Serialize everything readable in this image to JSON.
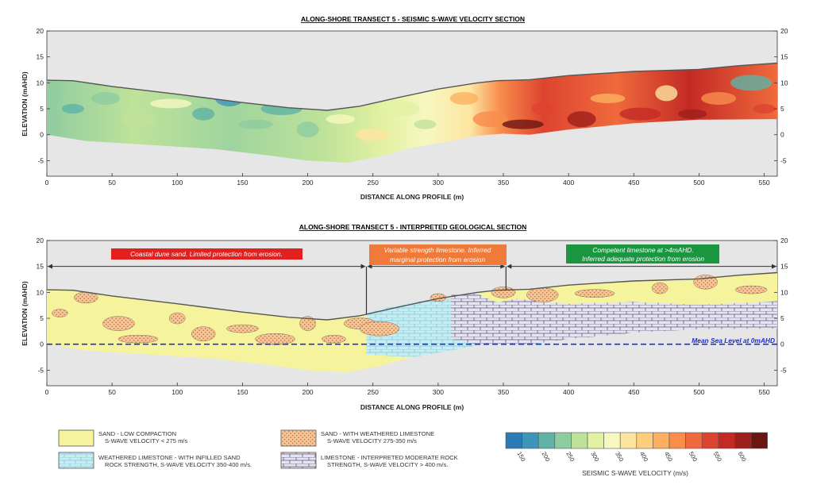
{
  "top": {
    "title": "ALONG-SHORE TRANSECT 5 - SEISMIC S-WAVE VELOCITY SECTION",
    "y_label": "ELEVATION (mAHD)",
    "x_label": "DISTANCE ALONG PROFILE (m)",
    "x_ticks": [
      "0",
      "50",
      "100",
      "150",
      "200",
      "250",
      "300",
      "350",
      "400",
      "450",
      "500",
      "550"
    ],
    "y_ticks": [
      "20",
      "15",
      "10",
      "5",
      "0",
      "-5"
    ]
  },
  "bottom": {
    "title": "ALONG-SHORE TRANSECT 5 - INTERPRETED GEOLOGICAL SECTION",
    "y_label": "ELEVATION (mAHD)",
    "x_label": "DISTANCE ALONG PROFILE (m)",
    "x_ticks": [
      "0",
      "50",
      "100",
      "150",
      "200",
      "250",
      "300",
      "350",
      "400",
      "450",
      "500",
      "550"
    ],
    "y_ticks": [
      "20",
      "15",
      "10",
      "5",
      "0",
      "-5"
    ],
    "zones": [
      {
        "text": "Coastal dune sand. Limited protection from erosion.",
        "color": "#e4201f"
      },
      {
        "text": "Variable strength limestone. Inferred",
        "text2": "marginal protection from erosion",
        "color": "#f07a3a"
      },
      {
        "text": "Competent limestone at >4mAHD.",
        "text2": "Inferred adequate protection from erosion",
        "color": "#1a9640"
      }
    ],
    "msl_label": "Mean Sea Level at 0mAHD"
  },
  "legend": {
    "items": [
      {
        "line1": "SAND - LOW COMPACTION",
        "line2": "S-WAVE VELOCITY < 275 m/s",
        "pattern": "sand"
      },
      {
        "line1": "WEATHERED LIMESTONE - WITH INFILLED SAND",
        "line2": "ROCK STRENGTH, S-WAVE VELOCITY 350-400  m/s.",
        "pattern": "weathered"
      },
      {
        "line1": "SAND - WITH WEATHERED LIMESTONE",
        "line2": "S-WAVE VELOCITY 275-350 m/s",
        "pattern": "sandlime"
      },
      {
        "line1": "LIMESTONE - INTERPRETED MODERATE ROCK",
        "line2": "STRENGTH, S-WAVE VELOCITY > 400 m/s.",
        "pattern": "limestone"
      }
    ]
  },
  "colorbar": {
    "title": "SEISMIC S-WAVE VELOCITY (m/s)",
    "ticks": [
      "150",
      "200",
      "250",
      "300",
      "350",
      "400",
      "450",
      "500",
      "550",
      "600"
    ],
    "colors": [
      "#2c7bb6",
      "#3d96b9",
      "#5eb3a6",
      "#8fcca0",
      "#bfe29a",
      "#e2f1a2",
      "#f7f7c0",
      "#fde5a0",
      "#fdcf7d",
      "#fcb060",
      "#f88d4c",
      "#ef6a3c",
      "#dd4430",
      "#c42a25",
      "#9c1f1c",
      "#6b1613"
    ]
  }
}
